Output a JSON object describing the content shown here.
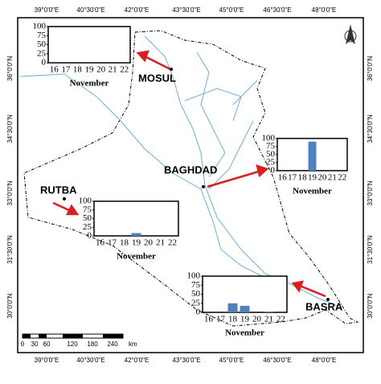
{
  "map": {
    "lon_ticks": [
      "39°0'0\"E",
      "40°30'0\"E",
      "42°0'0\"E",
      "43°30'0\"E",
      "45°0'0\"E",
      "46°30'0\"E",
      "48°0'0\"E"
    ],
    "lat_ticks": [
      "36°0'0\"N",
      "34°30'0\"N",
      "33°0'0\"N",
      "31°30'0\"N",
      "30°0'0\"N"
    ],
    "cities": [
      "MOSUL",
      "BAGHDAD",
      "RUTBA",
      "BASRA"
    ],
    "scale_labels": [
      "0",
      "30",
      "60",
      "120",
      "180",
      "240"
    ],
    "scale_unit": "km"
  },
  "chart_data": [
    {
      "type": "bar",
      "categories": [
        "16",
        "17",
        "18",
        "19",
        "20",
        "21",
        "22"
      ],
      "values": [
        0,
        0,
        0,
        0,
        0,
        0,
        0
      ],
      "x_label": "November",
      "ylim": [
        0,
        100
      ],
      "yticks": [
        0,
        25,
        50,
        75,
        100
      ],
      "color": "#4f81bd"
    },
    {
      "type": "bar",
      "categories": [
        "16",
        "17",
        "18",
        "19",
        "20",
        "21",
        "22"
      ],
      "values": [
        0,
        0,
        0,
        90,
        0,
        0,
        0
      ],
      "x_label": "November",
      "ylim": [
        0,
        100
      ],
      "yticks": [
        0,
        25,
        50,
        75,
        100
      ],
      "color": "#4f81bd"
    },
    {
      "type": "bar",
      "categories": [
        "16",
        "17",
        "18",
        "19",
        "20",
        "21",
        "22"
      ],
      "values": [
        0,
        0,
        0,
        8,
        0,
        0,
        0
      ],
      "x_label": "November",
      "ylim": [
        0,
        100
      ],
      "yticks": [
        0,
        25,
        50,
        75,
        100
      ],
      "color": "#4f81bd"
    },
    {
      "type": "bar",
      "categories": [
        "16",
        "17",
        "18",
        "19",
        "20",
        "21",
        "22"
      ],
      "values": [
        0,
        0,
        25,
        18,
        0,
        2,
        0
      ],
      "x_label": "November",
      "ylim": [
        0,
        100
      ],
      "yticks": [
        0,
        25,
        50,
        75,
        100
      ],
      "color": "#4f81bd"
    }
  ]
}
